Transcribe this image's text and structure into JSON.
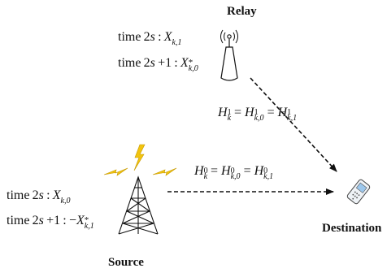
{
  "nodes": {
    "relay_label": "Relay",
    "source_label": "Source",
    "destination_label": "Destination"
  },
  "relay_schedule": {
    "line1_time": "time 2s",
    "line1_symbol": "X_{k,1}",
    "line2_time": "time 2s + 1",
    "line2_symbol": "X*_{k,0}"
  },
  "source_schedule": {
    "line1_time": "time 2s",
    "line1_symbol": "X_{k,0}",
    "line2_time": "time 2s + 1",
    "line2_symbol": "−X*_{k,1}"
  },
  "channels": {
    "relay_to_destination": "H^1_k = H^1_{k,0} = H^1_{k,1}",
    "source_to_destination": "H^0_k = H^0_{k,0} = H^0_{k,1}"
  },
  "colors": {
    "lightning": "#f2c40f",
    "lightning_outline": "#c79a00",
    "line": "#111111"
  }
}
